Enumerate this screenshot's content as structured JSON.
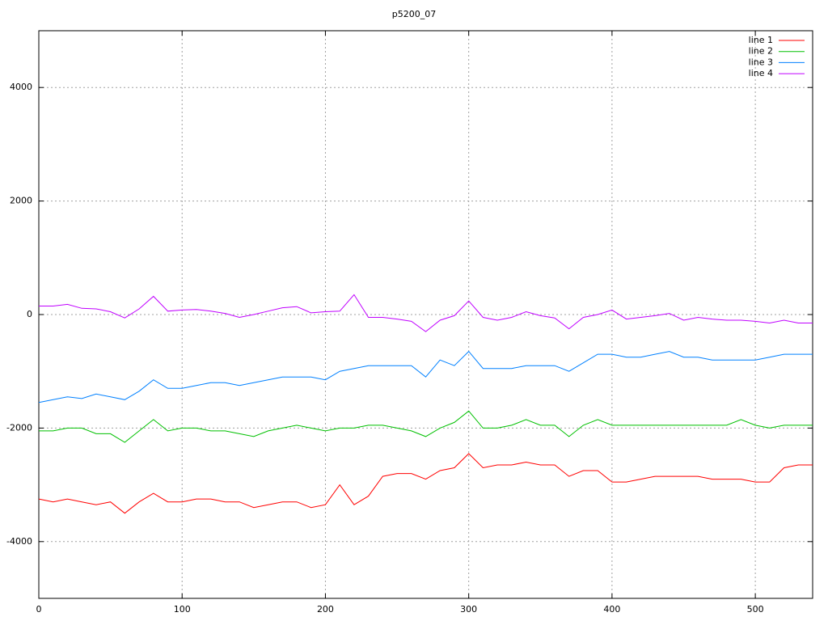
{
  "chart_data": {
    "type": "line",
    "title": "p5200_07",
    "x": [
      0,
      10,
      20,
      30,
      40,
      50,
      60,
      70,
      80,
      90,
      100,
      110,
      120,
      130,
      140,
      150,
      160,
      170,
      180,
      190,
      200,
      210,
      220,
      230,
      240,
      250,
      260,
      270,
      280,
      290,
      300,
      310,
      320,
      330,
      340,
      350,
      360,
      370,
      380,
      390,
      400,
      410,
      420,
      430,
      440,
      450,
      460,
      470,
      480,
      490,
      500,
      510,
      520,
      530,
      540
    ],
    "series": [
      {
        "name": "line 1",
        "color": "#ff0000",
        "values": [
          -3250,
          -3300,
          -3250,
          -3300,
          -3350,
          -3300,
          -3500,
          -3300,
          -3150,
          -3300,
          -3300,
          -3250,
          -3250,
          -3300,
          -3300,
          -3400,
          -3350,
          -3300,
          -3300,
          -3400,
          -3350,
          -3000,
          -3350,
          -3200,
          -2850,
          -2800,
          -2800,
          -2900,
          -2750,
          -2700,
          -2450,
          -2700,
          -2650,
          -2650,
          -2600,
          -2650,
          -2650,
          -2850,
          -2750,
          -2750,
          -2950,
          -2950,
          -2900,
          -2850,
          -2850,
          -2850,
          -2850,
          -2900,
          -2900,
          -2900,
          -2950,
          -2950,
          -2700,
          -2650,
          -2650
        ]
      },
      {
        "name": "line 2",
        "color": "#00c000",
        "values": [
          -2050,
          -2050,
          -2000,
          -2000,
          -2100,
          -2100,
          -2250,
          -2050,
          -1850,
          -2050,
          -2000,
          -2000,
          -2050,
          -2050,
          -2100,
          -2150,
          -2050,
          -2000,
          -1950,
          -2000,
          -2050,
          -2000,
          -2000,
          -1950,
          -1950,
          -2000,
          -2050,
          -2150,
          -2000,
          -1900,
          -1700,
          -2000,
          -2000,
          -1950,
          -1850,
          -1950,
          -1950,
          -2150,
          -1950,
          -1850,
          -1950,
          -1950,
          -1950,
          -1950,
          -1950,
          -1950,
          -1950,
          -1950,
          -1950,
          -1850,
          -1950,
          -2000,
          -1950,
          -1950,
          -1950
        ]
      },
      {
        "name": "line 3",
        "color": "#0080ff",
        "values": [
          -1550,
          -1500,
          -1450,
          -1480,
          -1400,
          -1450,
          -1500,
          -1350,
          -1150,
          -1300,
          -1300,
          -1250,
          -1200,
          -1200,
          -1250,
          -1200,
          -1150,
          -1100,
          -1100,
          -1100,
          -1150,
          -1000,
          -950,
          -900,
          -900,
          -900,
          -900,
          -1100,
          -800,
          -900,
          -650,
          -950,
          -950,
          -950,
          -900,
          -900,
          -900,
          -1000,
          -850,
          -700,
          -700,
          -750,
          -750,
          -700,
          -650,
          -750,
          -750,
          -800,
          -800,
          -800,
          -800,
          -750,
          -700,
          -700,
          -700
        ]
      },
      {
        "name": "line 4",
        "color": "#c000ff",
        "values": [
          150,
          150,
          180,
          110,
          100,
          50,
          -60,
          100,
          320,
          60,
          80,
          90,
          60,
          20,
          -50,
          0,
          60,
          120,
          140,
          30,
          50,
          60,
          350,
          -50,
          -50,
          -80,
          -120,
          -300,
          -100,
          -20,
          240,
          -50,
          -100,
          -50,
          50,
          -20,
          -60,
          -250,
          -50,
          0,
          80,
          -80,
          -50,
          -20,
          20,
          -100,
          -50,
          -80,
          -100,
          -100,
          -120,
          -150,
          -100,
          -150,
          -150
        ]
      }
    ],
    "xlim": [
      0,
      540
    ],
    "xticks": [
      0,
      100,
      200,
      300,
      400,
      500
    ],
    "ylim": [
      -5000,
      5000
    ],
    "yticks": [
      -4000,
      -2000,
      0,
      2000,
      4000
    ],
    "grid": true,
    "legend": "top-right"
  }
}
